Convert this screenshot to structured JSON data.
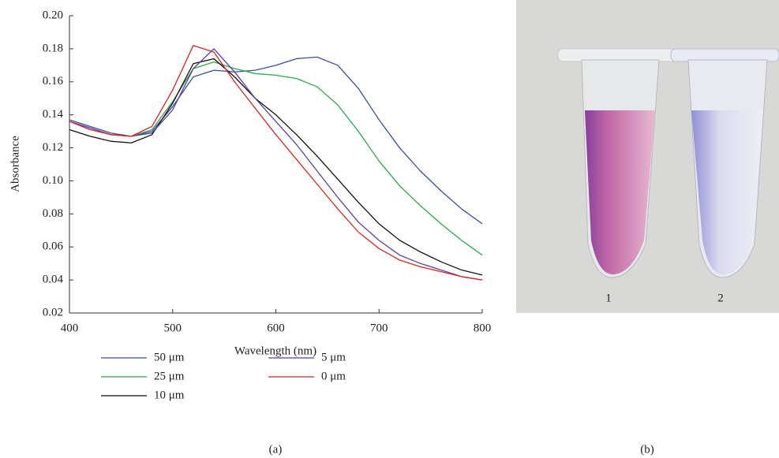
{
  "chart_data": {
    "type": "line",
    "xlabel": "Wavelength (nm)",
    "ylabel": "Absorbance",
    "caption": "(a)",
    "x": [
      400,
      420,
      440,
      460,
      480,
      500,
      520,
      540,
      560,
      580,
      600,
      620,
      640,
      660,
      680,
      700,
      720,
      740,
      760,
      780,
      800
    ],
    "series": [
      {
        "name": "50 μm",
        "color": "#3b4ea3",
        "values": [
          0.137,
          0.133,
          0.129,
          0.127,
          0.13,
          0.145,
          0.163,
          0.167,
          0.166,
          0.167,
          0.17,
          0.174,
          0.175,
          0.17,
          0.156,
          0.137,
          0.12,
          0.106,
          0.094,
          0.083,
          0.074
        ]
      },
      {
        "name": "25 μm",
        "color": "#2aa84a",
        "values": [
          0.136,
          0.132,
          0.128,
          0.127,
          0.131,
          0.148,
          0.168,
          0.172,
          0.168,
          0.165,
          0.164,
          0.162,
          0.157,
          0.146,
          0.13,
          0.112,
          0.097,
          0.085,
          0.074,
          0.064,
          0.055
        ]
      },
      {
        "name": "10 μm",
        "color": "#111111",
        "values": [
          0.131,
          0.127,
          0.124,
          0.123,
          0.128,
          0.147,
          0.171,
          0.174,
          0.163,
          0.15,
          0.14,
          0.128,
          0.115,
          0.101,
          0.087,
          0.074,
          0.064,
          0.057,
          0.051,
          0.046,
          0.043
        ]
      },
      {
        "name": "5 μm",
        "color": "#5b3fa3",
        "values": [
          0.136,
          0.132,
          0.128,
          0.127,
          0.129,
          0.143,
          0.168,
          0.18,
          0.166,
          0.15,
          0.136,
          0.122,
          0.106,
          0.09,
          0.075,
          0.064,
          0.055,
          0.05,
          0.046,
          0.042,
          0.04
        ]
      },
      {
        "name": "0 μm",
        "color": "#e02424",
        "values": [
          0.136,
          0.131,
          0.128,
          0.127,
          0.133,
          0.155,
          0.182,
          0.178,
          0.16,
          0.144,
          0.128,
          0.113,
          0.098,
          0.083,
          0.069,
          0.059,
          0.052,
          0.048,
          0.045,
          0.042,
          0.04
        ]
      }
    ],
    "xlim": [
      400,
      800
    ],
    "xticks": [
      400,
      500,
      600,
      700,
      800
    ],
    "ylim": [
      0.02,
      0.2
    ],
    "yticks": [
      0.02,
      0.04,
      0.06,
      0.08,
      {
        "value": 0.1,
        "label": "0.10"
      },
      0.12,
      0.14,
      0.16,
      0.18,
      {
        "value": 0.2,
        "label": "0.20"
      }
    ]
  },
  "photo": {
    "caption": "(b)",
    "tube_labels": [
      "1",
      "2"
    ]
  }
}
